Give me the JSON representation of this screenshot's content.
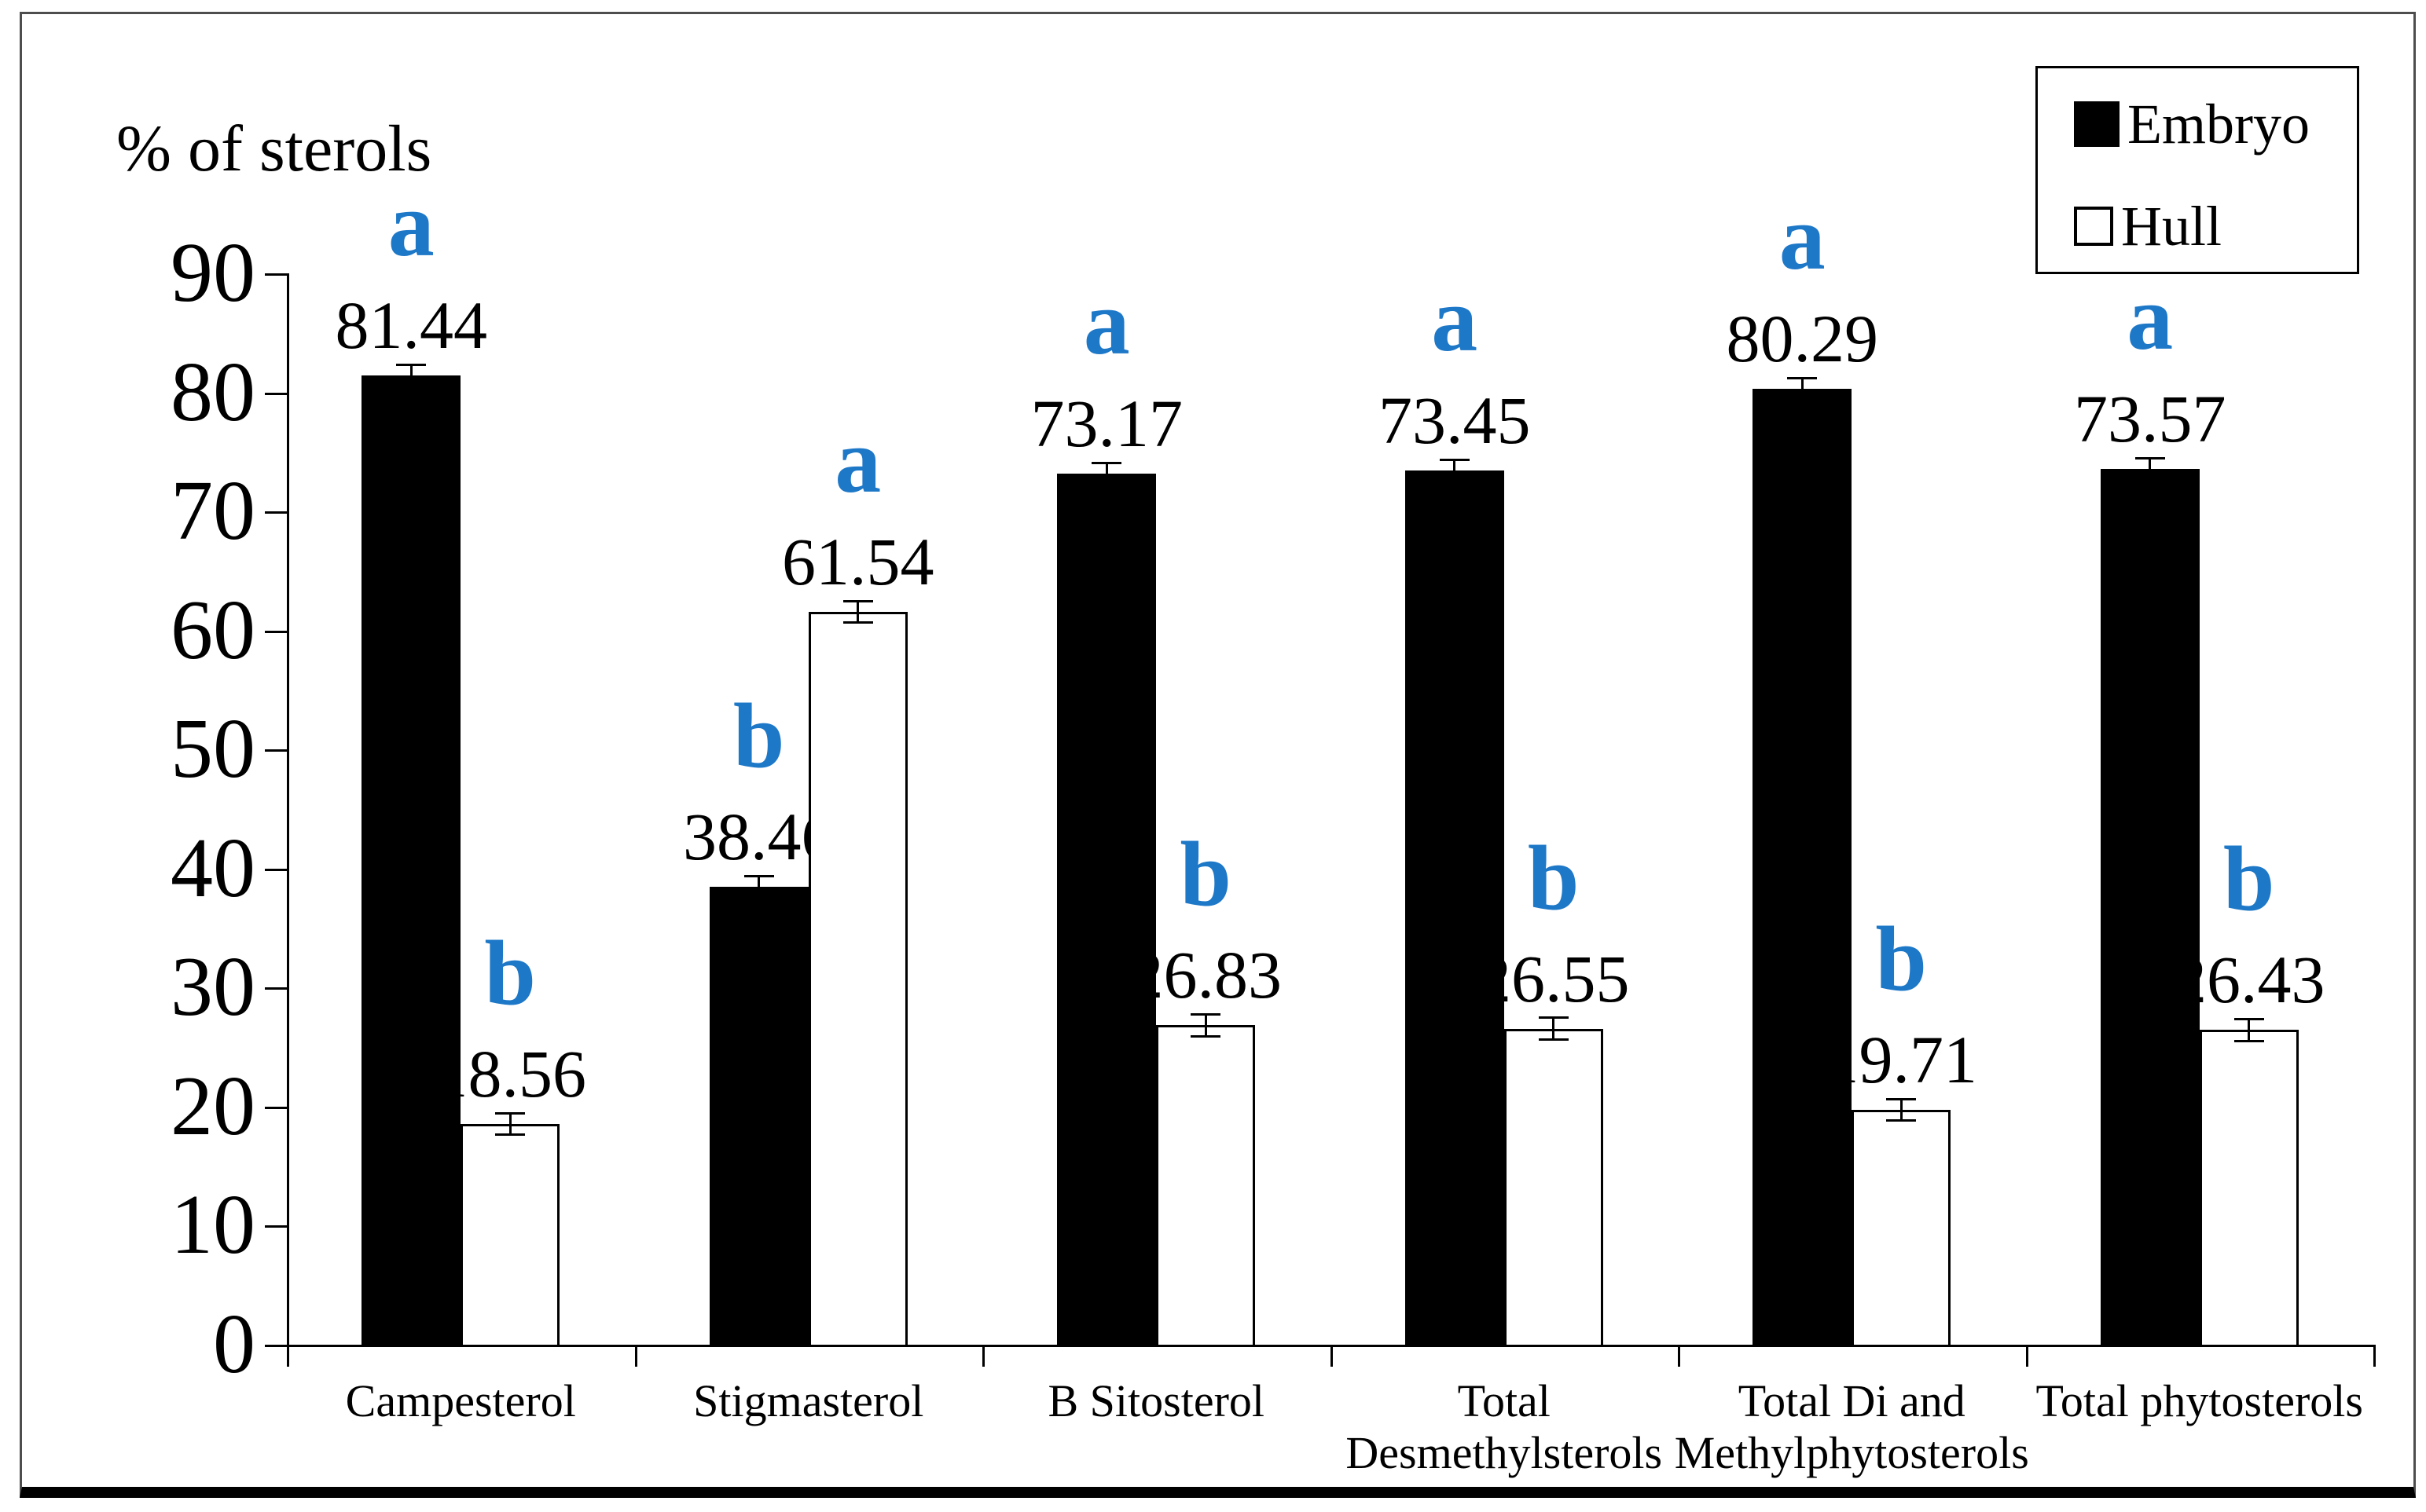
{
  "figure": {
    "title": "% of sterols"
  },
  "chart_data": {
    "type": "bar",
    "title": "% of sterols",
    "ylabel": "% of sterols",
    "xlabel": "",
    "categories": [
      "Campesterol",
      "Stigmasterol",
      "B Sitosterol",
      "Total\nDesmethylsterols",
      "Total Di and\nMethylphytosterols",
      "Total phytosterols"
    ],
    "series": [
      {
        "name": "Embryo",
        "color": "#000000",
        "border_color": "#000000",
        "values": [
          81.44,
          38.46,
          73.17,
          73.45,
          80.29,
          73.57
        ],
        "sig_letters": [
          "a",
          "b",
          "a",
          "a",
          "a",
          "a"
        ]
      },
      {
        "name": "Hull",
        "color": "#ffffff",
        "border_color": "#000000",
        "values": [
          18.56,
          61.54,
          26.83,
          26.55,
          19.71,
          26.43
        ],
        "sig_letters": [
          "b",
          "a",
          "b",
          "b",
          "b",
          "b"
        ]
      }
    ],
    "ylim": [
      0,
      90
    ],
    "yticks": [
      0,
      10,
      20,
      30,
      40,
      50,
      60,
      70,
      80,
      90
    ],
    "grid": false,
    "legend_position": "top-right",
    "sig_letter_color": "#1E78C8",
    "error_bars": {
      "visible": true,
      "approx_half_range_units": 1
    }
  }
}
